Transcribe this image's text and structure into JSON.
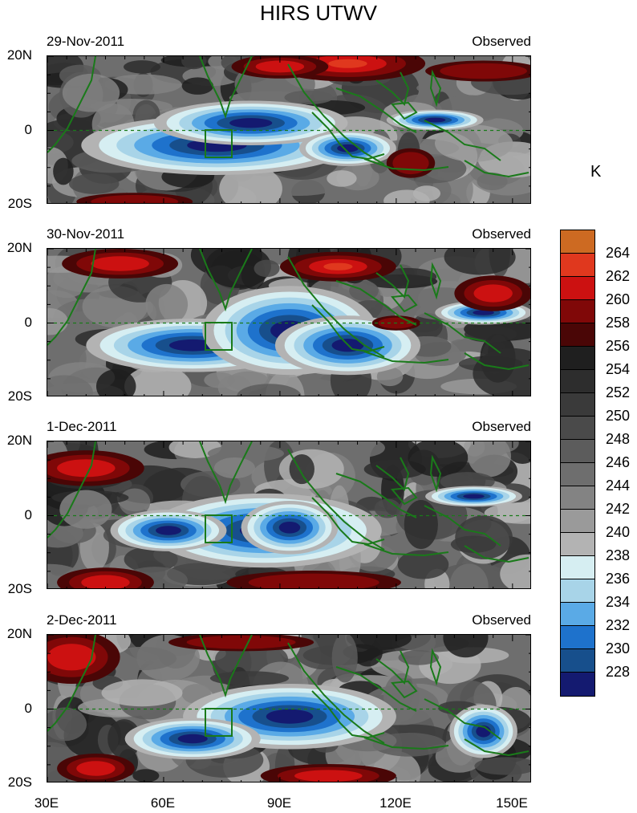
{
  "title": "HIRS UTWV",
  "units": "K",
  "panels": [
    {
      "date": "29-Nov-2011",
      "tag": "Observed"
    },
    {
      "date": "30-Nov-2011",
      "tag": "Observed"
    },
    {
      "date": "1-Dec-2011",
      "tag": "Observed"
    },
    {
      "date": "2-Dec-2011",
      "tag": "Observed"
    }
  ],
  "lat_labels": [
    "20N",
    "0",
    "20S"
  ],
  "lon_labels": [
    "30E",
    "60E",
    "90E",
    "120E",
    "150E"
  ],
  "colorbar": {
    "labels": [
      "264",
      "262",
      "260",
      "258",
      "256",
      "254",
      "252",
      "250",
      "248",
      "246",
      "244",
      "242",
      "240",
      "238",
      "236",
      "234",
      "232",
      "230",
      "228"
    ],
    "colors": [
      "#cd6a22",
      "#e0381e",
      "#cc1111",
      "#800808",
      "#4a0606",
      "#1f1f1f",
      "#2d2d2d",
      "#3a3a3a",
      "#4a4a4a",
      "#5c5c5c",
      "#6e6e6e",
      "#838383",
      "#9a9a9a",
      "#b3b3b3",
      "#d6eef2",
      "#a8d4e8",
      "#5aaae6",
      "#1e72cc",
      "#174f8c",
      "#141a70"
    ]
  },
  "map_legend": {
    "coastline_color": "#1a7a1a",
    "box_color": "#1a7a1a",
    "equator_line": "dashed"
  }
}
